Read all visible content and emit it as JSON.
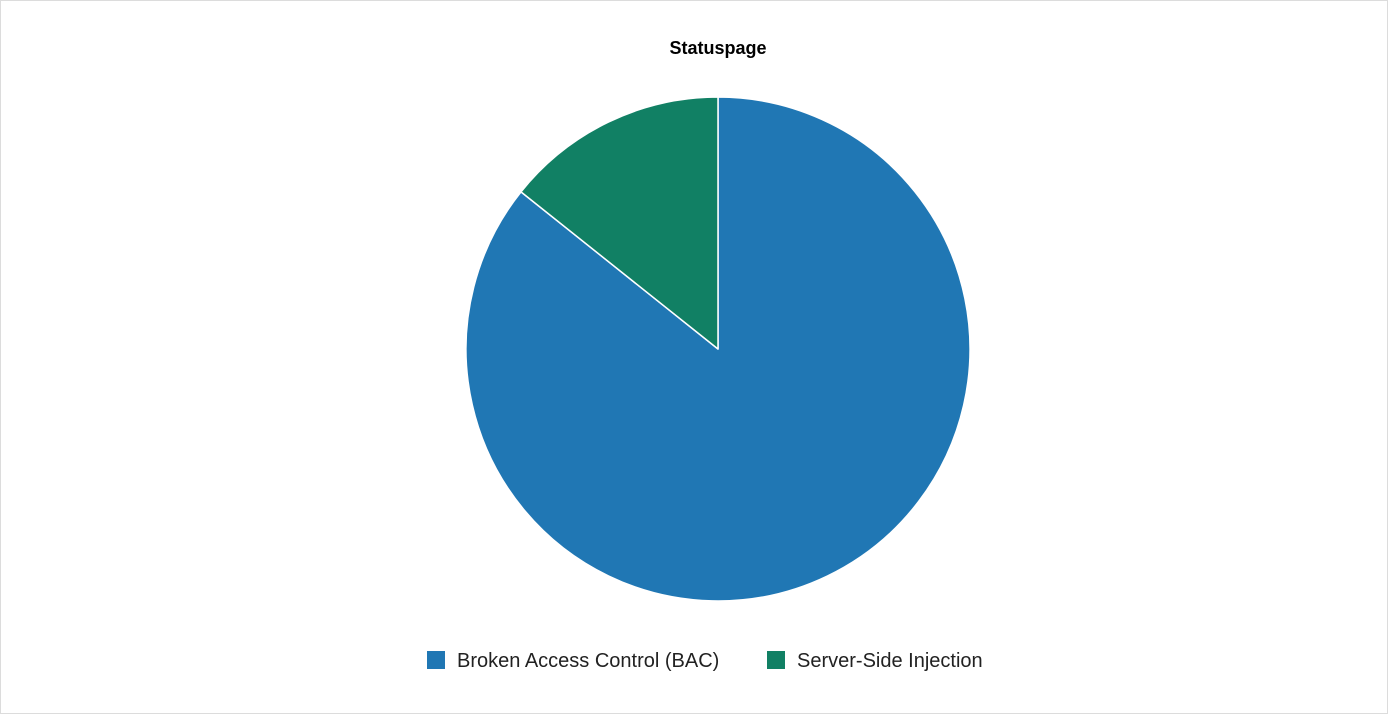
{
  "chart_data": {
    "type": "pie",
    "title": "Statuspage",
    "slices": [
      {
        "label": "Broken Access Control (BAC)",
        "value": 6,
        "color": "#2077b4"
      },
      {
        "label": "Server-Side Injection",
        "value": 1,
        "color": "#118064"
      }
    ],
    "start_angle": "12 o'clock",
    "direction": "clockwise",
    "legend_position": "bottom-center"
  }
}
